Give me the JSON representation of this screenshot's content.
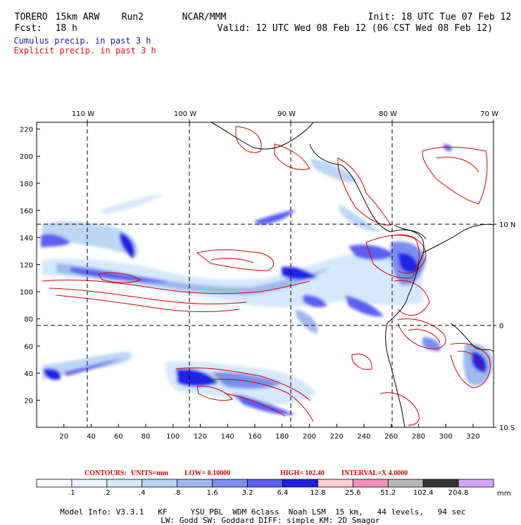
{
  "header": {
    "model": "TORERO",
    "resolution": "15km ARW",
    "run": "Run2",
    "org": "NCAR/MMM",
    "init": "Init: 18 UTC Tue 07 Feb 12",
    "fcst_label": "Fcst:",
    "fcst_value": "18 h",
    "valid": "Valid: 12 UTC Wed 08 Feb 12 (06 CST Wed 08 Feb 12)",
    "legend_cumulus": "Cumulus precip. in past 3 h",
    "legend_explicit": "Explicit precip. in past 3 h"
  },
  "colors": {
    "cumulus_title": "#1a1aa6",
    "explicit_title": "#dd1111",
    "contour": "#d40000",
    "grid": "#000000",
    "coast": "#000000"
  },
  "axes": {
    "lon_labels": [
      "110 W",
      "100 W",
      "90 W",
      "80 W",
      "70 W"
    ],
    "lat_labels": [
      "10 N",
      "0",
      "10 S"
    ],
    "x_ticks": [
      "20",
      "40",
      "60",
      "80",
      "100",
      "120",
      "140",
      "160",
      "180",
      "200",
      "220",
      "240",
      "260",
      "280",
      "300",
      "320"
    ],
    "y_ticks": [
      "20",
      "40",
      "60",
      "80",
      "100",
      "120",
      "140",
      "160",
      "180",
      "200",
      "220"
    ]
  },
  "contour_info": {
    "label": "CONTOURS:",
    "units": "UNITS=mm",
    "low": "LOW= 0.10000",
    "high": "HIGH= 102.40",
    "interval": "INTERVAL=X 4.0000"
  },
  "colorbar": {
    "colors": [
      "#ffffff",
      "#eaf3ff",
      "#d6e8fb",
      "#bcd6f3",
      "#9fb8ee",
      "#7c8ef0",
      "#5c5ff0",
      "#2020e6",
      "#f7cfcf",
      "#f290b8",
      "#b8b8b8",
      "#333333",
      "#d6a6f6"
    ],
    "labels": [
      ".1",
      ".2",
      ".4",
      ".8",
      "1.6",
      "3.2",
      "6.4",
      "12.8",
      "25.6",
      "51.2",
      "102.4",
      "204.8"
    ],
    "unit": "mm"
  },
  "footer": {
    "line1": "Model Info: V3.3.1   KF     YSU PBL  WDM 6class  Noah LSM  15 km,   44 levels,   94 sec",
    "line2": "LW: Godd SW: Goddard DIFF: simple KM: 2D Smagor"
  }
}
